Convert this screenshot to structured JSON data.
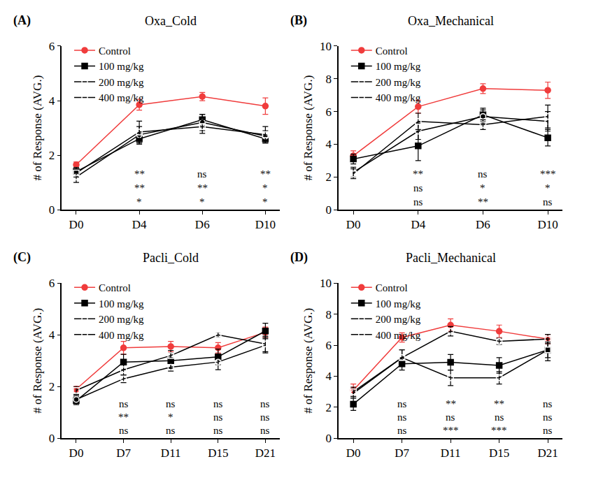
{
  "chart_data": [
    {
      "type": "line",
      "panel": "(A)",
      "title": "Oxa_Cold",
      "y_label": "# of Response (AVG.)",
      "categories": [
        "D0",
        "D4",
        "D6",
        "D10"
      ],
      "ylim": [
        0,
        6
      ],
      "yticks": [
        0,
        2,
        4,
        6
      ],
      "grid": false,
      "legend": "top-left",
      "series": [
        {
          "name": "Control",
          "color": "#f03c3c",
          "marker": "circle",
          "values": [
            1.65,
            3.85,
            4.15,
            3.8
          ],
          "error": [
            0.1,
            0.2,
            0.15,
            0.3
          ]
        },
        {
          "name": "100 mg/kg",
          "color": "#000000",
          "marker": "square",
          "values": [
            1.4,
            2.6,
            3.3,
            2.6
          ],
          "error": [
            0.15,
            0.2,
            0.2,
            0.15
          ]
        },
        {
          "name": "200 mg/kg",
          "color": "#000000",
          "marker": "circle-open",
          "values": [
            1.2,
            2.75,
            3.2,
            2.7
          ],
          "error": [
            0.2,
            0.3,
            0.3,
            0.2
          ]
        },
        {
          "name": "400 mg/kg",
          "color": "#000000",
          "marker": "square-open",
          "values": [
            1.35,
            2.85,
            3.05,
            2.75
          ],
          "error": [
            0.15,
            0.4,
            0.25,
            0.3
          ]
        }
      ],
      "annotations": [
        {
          "x": "D4",
          "text": [
            "**",
            "**",
            "*"
          ]
        },
        {
          "x": "D6",
          "text": [
            "ns",
            "**",
            "*"
          ]
        },
        {
          "x": "D10",
          "text": [
            "**",
            "*",
            "*"
          ]
        }
      ]
    },
    {
      "type": "line",
      "panel": "(B)",
      "title": "Oxa_Mechanical",
      "y_label": "# of Response (AVG.)",
      "categories": [
        "D0",
        "D4",
        "D6",
        "D10"
      ],
      "ylim": [
        0,
        10
      ],
      "yticks": [
        0,
        2,
        4,
        6,
        8,
        10
      ],
      "grid": false,
      "legend": "top-left",
      "series": [
        {
          "name": "Control",
          "color": "#f03c3c",
          "marker": "circle",
          "values": [
            3.3,
            6.3,
            7.4,
            7.3
          ],
          "error": [
            0.3,
            0.4,
            0.3,
            0.5
          ]
        },
        {
          "name": "100 mg/kg",
          "color": "#000000",
          "marker": "square",
          "values": [
            3.1,
            3.9,
            5.8,
            4.4
          ],
          "error": [
            0.3,
            0.9,
            0.4,
            0.5
          ]
        },
        {
          "name": "200 mg/kg",
          "color": "#000000",
          "marker": "circle-open",
          "values": [
            2.3,
            4.8,
            5.7,
            5.4
          ],
          "error": [
            0.3,
            0.5,
            0.4,
            0.6
          ]
        },
        {
          "name": "400 mg/kg",
          "color": "#000000",
          "marker": "square-open",
          "values": [
            2.2,
            5.4,
            5.2,
            5.7
          ],
          "error": [
            0.3,
            0.5,
            0.3,
            0.7
          ]
        }
      ],
      "annotations": [
        {
          "x": "D4",
          "text": [
            "**",
            "ns",
            "ns"
          ]
        },
        {
          "x": "D6",
          "text": [
            "ns",
            "*",
            "**"
          ]
        },
        {
          "x": "D10",
          "text": [
            "***",
            "*",
            "ns"
          ]
        }
      ]
    },
    {
      "type": "line",
      "panel": "(C)",
      "title": "Pacli_Cold",
      "y_label": "# of Response (AVG.)",
      "categories": [
        "D0",
        "D7",
        "D11",
        "D15",
        "D21"
      ],
      "ylim": [
        0,
        6
      ],
      "yticks": [
        0,
        2,
        4,
        6
      ],
      "grid": false,
      "legend": "top-left",
      "series": [
        {
          "name": "Control",
          "color": "#f03c3c",
          "marker": "circle",
          "values": [
            1.9,
            3.5,
            3.55,
            3.5,
            4.1
          ],
          "error": [
            0.1,
            0.25,
            0.2,
            0.2,
            0.2
          ]
        },
        {
          "name": "100 mg/kg",
          "color": "#000000",
          "marker": "square",
          "values": [
            1.45,
            2.95,
            3.0,
            3.15,
            4.15
          ],
          "error": [
            0.15,
            0.3,
            0.3,
            0.3,
            0.3
          ]
        },
        {
          "name": "200 mg/kg",
          "color": "#000000",
          "marker": "circle-open",
          "values": [
            1.5,
            2.3,
            2.75,
            2.95,
            3.6
          ],
          "error": [
            0.15,
            0.15,
            0.15,
            0.3,
            0.3
          ]
        },
        {
          "name": "400 mg/kg",
          "color": "#000000",
          "marker": "square-open",
          "values": [
            1.85,
            2.65,
            3.2,
            4.0,
            3.65
          ],
          "error": [
            0.15,
            0.2,
            0.2,
            0.1,
            0.3
          ]
        }
      ],
      "annotations": [
        {
          "x": "D7",
          "text": [
            "ns",
            "**",
            "ns"
          ]
        },
        {
          "x": "D11",
          "text": [
            "ns",
            "*",
            "ns"
          ]
        },
        {
          "x": "D15",
          "text": [
            "ns",
            "ns",
            "ns"
          ]
        },
        {
          "x": "D21",
          "text": [
            "ns",
            "ns",
            "ns"
          ]
        }
      ]
    },
    {
      "type": "line",
      "panel": "(D)",
      "title": "Pacli_Mechanical",
      "y_label": "# of Response (AVG.)",
      "categories": [
        "D0",
        "D7",
        "D11",
        "D15",
        "D21"
      ],
      "ylim": [
        0,
        10
      ],
      "yticks": [
        0,
        2,
        4,
        6,
        8,
        10
      ],
      "grid": false,
      "legend": "top-left",
      "series": [
        {
          "name": "Control",
          "color": "#f03c3c",
          "marker": "circle",
          "values": [
            3.1,
            6.5,
            7.3,
            6.9,
            6.4
          ],
          "error": [
            0.4,
            0.3,
            0.4,
            0.4,
            0.3
          ]
        },
        {
          "name": "100 mg/kg",
          "color": "#000000",
          "marker": "square",
          "values": [
            2.2,
            4.8,
            4.9,
            4.7,
            5.7
          ],
          "error": [
            0.4,
            0.4,
            0.5,
            0.5,
            0.7
          ]
        },
        {
          "name": "200 mg/kg",
          "color": "#000000",
          "marker": "circle-open",
          "values": [
            2.9,
            5.2,
            6.9,
            6.25,
            6.4
          ],
          "error": [
            0.3,
            0.5,
            0.3,
            0.2,
            0.3
          ]
        },
        {
          "name": "400 mg/kg",
          "color": "#000000",
          "marker": "square-open",
          "values": [
            3.0,
            5.2,
            3.9,
            3.9,
            5.7
          ],
          "error": [
            0.3,
            0.5,
            0.5,
            0.4,
            0.5
          ]
        }
      ],
      "annotations": [
        {
          "x": "D7",
          "text": [
            "ns",
            "ns",
            "ns"
          ]
        },
        {
          "x": "D11",
          "text": [
            "**",
            "ns",
            "***"
          ]
        },
        {
          "x": "D15",
          "text": [
            "**",
            "ns",
            "***"
          ]
        },
        {
          "x": "D21",
          "text": [
            "ns",
            "ns",
            "ns"
          ]
        }
      ]
    }
  ]
}
